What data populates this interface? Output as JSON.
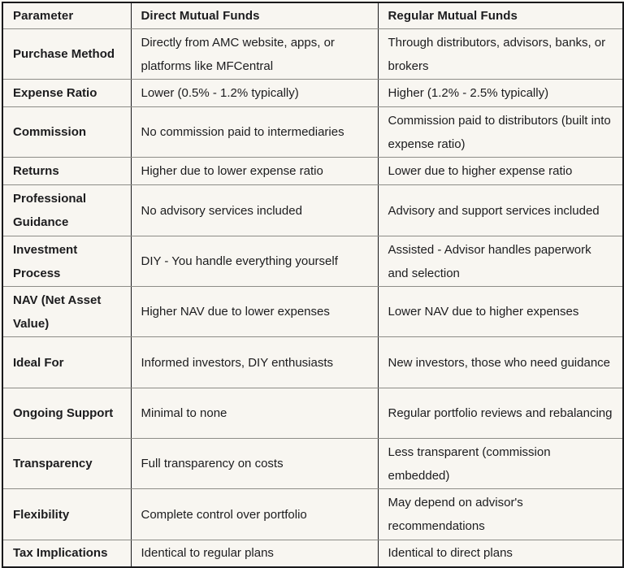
{
  "table": {
    "columns": [
      {
        "label": "Parameter"
      },
      {
        "label": "Direct Mutual Funds"
      },
      {
        "label": "Regular Mutual Funds"
      }
    ],
    "rows": [
      {
        "parameter": "Purchase Method",
        "direct": "Directly from AMC website, apps, or platforms like MFCentral",
        "regular": "Through distributors, advisors, banks, or brokers"
      },
      {
        "parameter": "Expense Ratio",
        "direct": "Lower (0.5% - 1.2% typically)",
        "regular": "Higher (1.2% - 2.5% typically)"
      },
      {
        "parameter": "Commission",
        "direct": "No commission paid to intermediaries",
        "regular": "Commission paid to distributors (built into expense ratio)"
      },
      {
        "parameter": "Returns",
        "direct": "Higher due to lower expense ratio",
        "regular": "Lower due to higher expense ratio"
      },
      {
        "parameter": "Professional Guidance",
        "direct": "No advisory services included",
        "regular": "Advisory and support services included"
      },
      {
        "parameter": "Investment Process",
        "direct": "DIY - You handle everything yourself",
        "regular": "Assisted - Advisor handles paperwork and selection"
      },
      {
        "parameter": "NAV (Net Asset Value)",
        "direct": "Higher NAV due to lower expenses",
        "regular": "Lower NAV due to higher expenses"
      },
      {
        "parameter": "Ideal For",
        "direct": "Informed investors, DIY enthusiasts",
        "regular": "New investors, those who need guidance"
      },
      {
        "parameter": "Ongoing Support",
        "direct": "Minimal to none",
        "regular": "Regular portfolio reviews and rebalancing"
      },
      {
        "parameter": "Transparency",
        "direct": "Full transparency on costs",
        "regular": "Less transparent (commission embedded)"
      },
      {
        "parameter": "Flexibility",
        "direct": "Complete control over portfolio",
        "regular": "May depend on advisor's recommendations"
      },
      {
        "parameter": "Tax Implications",
        "direct": "Identical to regular plans",
        "regular": "Identical to direct plans"
      }
    ]
  },
  "colors": {
    "background": "#f8f6f1",
    "border_dark": "#19191b",
    "border_light": "#8d8c87",
    "text": "#1c1c1e"
  }
}
